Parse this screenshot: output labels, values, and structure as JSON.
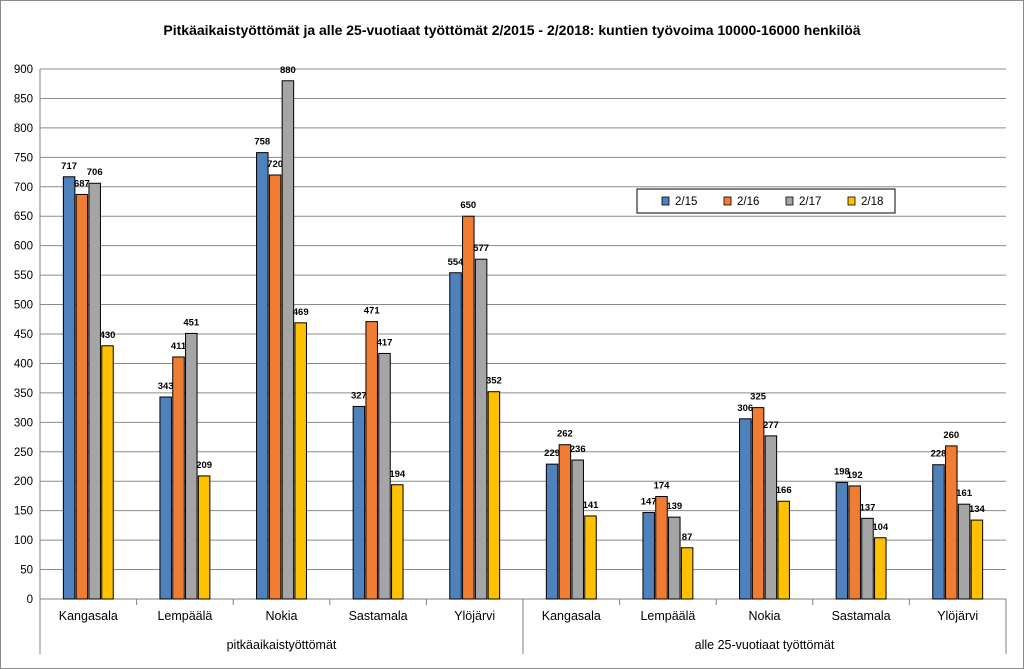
{
  "chart_data": {
    "type": "bar",
    "title": "Pitkäaikaistyöttömät ja alle 25-vuotiaat työttömät 2/2015 - 2/2018: kuntien työvoima 10000-16000 henkilöä",
    "xlabel": "",
    "ylabel": "",
    "ylim": [
      0,
      900
    ],
    "yticks": [
      0,
      50,
      100,
      150,
      200,
      250,
      300,
      350,
      400,
      450,
      500,
      550,
      600,
      650,
      700,
      750,
      800,
      850,
      900
    ],
    "grid": true,
    "legend_position": "right, upper middle",
    "groups": [
      "pitkäaikaistyöttömät",
      "alle 25-vuotiaat työttömät"
    ],
    "categories": [
      "Kangasala",
      "Lempäälä",
      "Nokia",
      "Sastamala",
      "Ylöjärvi",
      "Kangasala",
      "Lempäälä",
      "Nokia",
      "Sastamala",
      "Ylöjärvi"
    ],
    "series": [
      {
        "name": "2/15",
        "color": "#4f81bd",
        "values": [
          717,
          343,
          758,
          327,
          554,
          229,
          147,
          306,
          198,
          228
        ]
      },
      {
        "name": "2/16",
        "color": "#f07d32",
        "values": [
          687,
          411,
          720,
          471,
          650,
          262,
          174,
          325,
          192,
          260
        ]
      },
      {
        "name": "2/17",
        "color": "#a5a5a5",
        "values": [
          706,
          451,
          880,
          417,
          577,
          236,
          139,
          277,
          137,
          161
        ]
      },
      {
        "name": "2/18",
        "color": "#ffc000",
        "values": [
          430,
          209,
          469,
          194,
          352,
          141,
          87,
          166,
          104,
          134
        ]
      }
    ]
  }
}
